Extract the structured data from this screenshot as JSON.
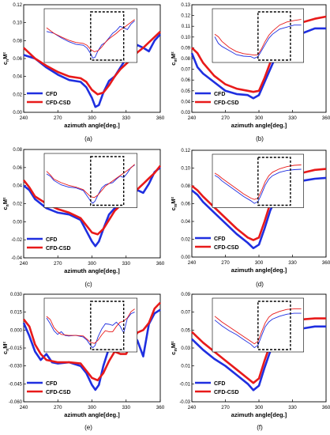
{
  "figure": {
    "colors": {
      "cfd": "#1f2fe0",
      "cfd_csd": "#e81a1a",
      "axis": "#000000",
      "inset_box": "#000000"
    }
  },
  "chart_data": [
    {
      "id": "a",
      "panel_label": "(a)",
      "type": "line",
      "xlabel": "azimuth angle[deg.]",
      "ylabel": "c_nM²",
      "ylabel_main": "c",
      "ylabel_sub": "n",
      "ylabel_rest": "M²",
      "xlim": [
        240,
        360
      ],
      "ylim": [
        0.0,
        0.12
      ],
      "xticks": [
        "240",
        "270",
        "300",
        "330",
        "360"
      ],
      "yticks": [
        "0.00",
        "0.02",
        "0.04",
        "0.06",
        "0.08",
        "0.10",
        "0.12"
      ],
      "legend": {
        "placement": "lower-left",
        "entries": [
          "CFD",
          "CFD-CSD"
        ]
      },
      "series": [
        {
          "name": "CFD",
          "color": "#1f2fe0",
          "x": [
            240,
            250,
            260,
            270,
            280,
            290,
            295,
            300,
            303,
            306,
            310,
            315,
            320,
            325,
            330,
            335,
            340,
            345,
            350,
            355,
            360
          ],
          "y": [
            0.064,
            0.06,
            0.05,
            0.042,
            0.036,
            0.034,
            0.028,
            0.016,
            0.006,
            0.008,
            0.022,
            0.035,
            0.04,
            0.05,
            0.06,
            0.066,
            0.075,
            0.072,
            0.068,
            0.08,
            0.087
          ]
        },
        {
          "name": "CFD-CSD",
          "color": "#e81a1a",
          "x": [
            240,
            250,
            260,
            270,
            280,
            290,
            295,
            300,
            305,
            310,
            315,
            320,
            325,
            330,
            335,
            340,
            345,
            350,
            355,
            360
          ],
          "y": [
            0.072,
            0.06,
            0.052,
            0.045,
            0.04,
            0.038,
            0.034,
            0.025,
            0.02,
            0.022,
            0.03,
            0.04,
            0.048,
            0.054,
            0.06,
            0.067,
            0.072,
            0.078,
            0.084,
            0.09
          ]
        }
      ]
    },
    {
      "id": "b",
      "panel_label": "(b)",
      "type": "line",
      "xlabel": "azimuth angle[deg.]",
      "ylabel": "c_mM²",
      "ylabel_main": "c",
      "ylabel_sub": "m",
      "ylabel_rest": "M²",
      "xlim": [
        240,
        360
      ],
      "ylim": [
        0.03,
        0.13
      ],
      "xticks": [
        "240",
        "270",
        "300",
        "330",
        "360"
      ],
      "yticks": [
        "0.03",
        "0.04",
        "0.05",
        "0.06",
        "0.07",
        "0.08",
        "0.09",
        "0.10",
        "0.11",
        "0.12",
        "0.13"
      ],
      "legend": {
        "placement": "lower-left",
        "entries": [
          "CFD",
          "CFD-CSD"
        ]
      },
      "series": [
        {
          "name": "CFD",
          "color": "#1f2fe0",
          "x": [
            240,
            245,
            250,
            260,
            270,
            280,
            290,
            295,
            300,
            305,
            310,
            315,
            320,
            330,
            340,
            350,
            360
          ],
          "y": [
            0.085,
            0.072,
            0.066,
            0.058,
            0.05,
            0.047,
            0.046,
            0.043,
            0.046,
            0.058,
            0.07,
            0.082,
            0.09,
            0.1,
            0.104,
            0.108,
            0.108
          ]
        },
        {
          "name": "CFD-CSD",
          "color": "#e81a1a",
          "x": [
            240,
            245,
            250,
            260,
            270,
            280,
            290,
            295,
            300,
            305,
            310,
            315,
            320,
            330,
            340,
            350,
            360
          ],
          "y": [
            0.09,
            0.085,
            0.076,
            0.064,
            0.056,
            0.052,
            0.05,
            0.049,
            0.05,
            0.062,
            0.076,
            0.088,
            0.096,
            0.108,
            0.114,
            0.117,
            0.119
          ]
        }
      ]
    },
    {
      "id": "c",
      "panel_label": "(c)",
      "type": "line",
      "xlabel": "azimuth angle[deg.]",
      "ylabel": "c_nM²",
      "ylabel_main": "c",
      "ylabel_sub": "n",
      "ylabel_rest": "M²",
      "xlim": [
        240,
        360
      ],
      "ylim": [
        -0.04,
        0.08
      ],
      "xticks": [
        "240",
        "270",
        "300",
        "330",
        "360"
      ],
      "yticks": [
        "-0.04",
        "-0.02",
        "0.00",
        "0.02",
        "0.04",
        "0.06",
        "0.08"
      ],
      "legend": {
        "placement": "lower-left",
        "entries": [
          "CFD",
          "CFD-CSD"
        ]
      },
      "series": [
        {
          "name": "CFD",
          "color": "#1f2fe0",
          "x": [
            240,
            245,
            250,
            260,
            270,
            280,
            290,
            295,
            300,
            303,
            306,
            310,
            315,
            320,
            325,
            330,
            335,
            340,
            345,
            350,
            355,
            360
          ],
          "y": [
            0.04,
            0.035,
            0.025,
            0.015,
            0.01,
            0.008,
            0.002,
            -0.01,
            -0.022,
            -0.027,
            -0.022,
            -0.008,
            0.008,
            0.015,
            0.018,
            0.02,
            0.028,
            0.035,
            0.032,
            0.042,
            0.055,
            0.06
          ]
        },
        {
          "name": "CFD-CSD",
          "color": "#e81a1a",
          "x": [
            240,
            245,
            250,
            260,
            270,
            280,
            290,
            295,
            300,
            305,
            310,
            315,
            320,
            325,
            330,
            335,
            340,
            345,
            350,
            355,
            360
          ],
          "y": [
            0.046,
            0.038,
            0.028,
            0.02,
            0.014,
            0.01,
            0.004,
            -0.004,
            -0.012,
            -0.014,
            -0.008,
            0.002,
            0.012,
            0.018,
            0.024,
            0.03,
            0.036,
            0.042,
            0.048,
            0.054,
            0.062
          ]
        }
      ]
    },
    {
      "id": "d",
      "panel_label": "(d)",
      "type": "line",
      "xlabel": "azimuth angle[deg.]",
      "ylabel": "c_mM²",
      "ylabel_main": "c",
      "ylabel_sub": "m",
      "ylabel_rest": "M²",
      "xlim": [
        240,
        360
      ],
      "ylim": [
        0.0,
        0.12
      ],
      "xticks": [
        "240",
        "270",
        "300",
        "330",
        "360"
      ],
      "yticks": [
        "0.00",
        "0.02",
        "0.04",
        "0.06",
        "0.08",
        "0.10",
        "0.12"
      ],
      "legend": {
        "placement": "lower-left",
        "entries": [
          "CFD",
          "CFD-CSD"
        ]
      },
      "series": [
        {
          "name": "CFD",
          "color": "#1f2fe0",
          "x": [
            240,
            245,
            250,
            260,
            270,
            280,
            290,
            295,
            300,
            305,
            310,
            315,
            320,
            330,
            340,
            350,
            360
          ],
          "y": [
            0.075,
            0.07,
            0.062,
            0.05,
            0.038,
            0.026,
            0.016,
            0.01,
            0.014,
            0.032,
            0.052,
            0.066,
            0.074,
            0.082,
            0.086,
            0.088,
            0.089
          ]
        },
        {
          "name": "CFD-CSD",
          "color": "#e81a1a",
          "x": [
            240,
            245,
            250,
            260,
            270,
            280,
            290,
            295,
            300,
            305,
            310,
            315,
            320,
            330,
            340,
            350,
            360
          ],
          "y": [
            0.08,
            0.075,
            0.068,
            0.056,
            0.044,
            0.032,
            0.022,
            0.019,
            0.022,
            0.04,
            0.06,
            0.074,
            0.082,
            0.09,
            0.095,
            0.098,
            0.099
          ]
        }
      ]
    },
    {
      "id": "e",
      "panel_label": "(e)",
      "type": "line",
      "xlabel": "azimuth angle[deg.]",
      "ylabel": "c_nM²",
      "ylabel_main": "c",
      "ylabel_sub": "n",
      "ylabel_rest": "M²",
      "xlim": [
        240,
        360
      ],
      "ylim": [
        -0.06,
        0.03
      ],
      "xticks": [
        "240",
        "270",
        "300",
        "330",
        "360"
      ],
      "yticks": [
        "-0.060",
        "-0.045",
        "-0.030",
        "-0.015",
        "0.000",
        "0.015",
        "0.030"
      ],
      "legend": {
        "placement": "lower-left",
        "entries": [
          "CFD",
          "CFD-CSD"
        ]
      },
      "series": [
        {
          "name": "CFD",
          "color": "#1f2fe0",
          "x": [
            240,
            245,
            250,
            255,
            260,
            265,
            270,
            280,
            290,
            295,
            300,
            303,
            306,
            310,
            315,
            320,
            325,
            330,
            335,
            340,
            345,
            350,
            355,
            360
          ],
          "y": [
            0.006,
            -0.005,
            -0.018,
            -0.025,
            -0.02,
            -0.027,
            -0.028,
            -0.027,
            -0.03,
            -0.036,
            -0.046,
            -0.05,
            -0.046,
            -0.03,
            -0.015,
            -0.005,
            -0.006,
            -0.008,
            -0.002,
            -0.009,
            -0.022,
            0.005,
            0.014,
            0.017
          ]
        },
        {
          "name": "CFD-CSD",
          "color": "#e81a1a",
          "x": [
            240,
            245,
            250,
            255,
            260,
            270,
            280,
            290,
            295,
            300,
            305,
            310,
            315,
            320,
            325,
            330,
            335,
            340,
            345,
            350,
            355,
            360
          ],
          "y": [
            0.009,
            0.003,
            -0.012,
            -0.02,
            -0.025,
            -0.027,
            -0.027,
            -0.028,
            -0.034,
            -0.04,
            -0.042,
            -0.036,
            -0.026,
            -0.018,
            -0.02,
            -0.02,
            -0.01,
            -0.002,
            0.0,
            0.006,
            0.018,
            0.023
          ]
        }
      ]
    },
    {
      "id": "f",
      "panel_label": "(f)",
      "type": "line",
      "xlabel": "azimuth angle[deg.]",
      "ylabel": "c_mM²",
      "ylabel_main": "c",
      "ylabel_sub": "m",
      "ylabel_rest": "M²",
      "xlim": [
        240,
        360
      ],
      "ylim": [
        -0.03,
        0.09
      ],
      "xticks": [
        "240",
        "270",
        "300",
        "330",
        "360"
      ],
      "yticks": [
        "-0.03",
        "-0.01",
        "0.01",
        "0.03",
        "0.05",
        "0.07",
        "0.09"
      ],
      "legend": {
        "placement": "lower-left",
        "entries": [
          "CFD",
          "CFD-CSD"
        ]
      },
      "series": [
        {
          "name": "CFD",
          "color": "#1f2fe0",
          "x": [
            240,
            245,
            250,
            260,
            270,
            280,
            290,
            295,
            300,
            305,
            310,
            315,
            320,
            330,
            340,
            350,
            360
          ],
          "y": [
            0.04,
            0.034,
            0.028,
            0.018,
            0.01,
            0.0,
            -0.01,
            -0.017,
            -0.012,
            0.008,
            0.026,
            0.036,
            0.042,
            0.048,
            0.052,
            0.054,
            0.054
          ]
        },
        {
          "name": "CFD-CSD",
          "color": "#e81a1a",
          "x": [
            240,
            245,
            250,
            260,
            270,
            280,
            290,
            295,
            300,
            305,
            310,
            315,
            320,
            330,
            340,
            350,
            360
          ],
          "y": [
            0.048,
            0.042,
            0.036,
            0.026,
            0.016,
            0.006,
            -0.004,
            -0.009,
            -0.004,
            0.016,
            0.034,
            0.046,
            0.052,
            0.058,
            0.062,
            0.063,
            0.063
          ]
        }
      ]
    }
  ]
}
